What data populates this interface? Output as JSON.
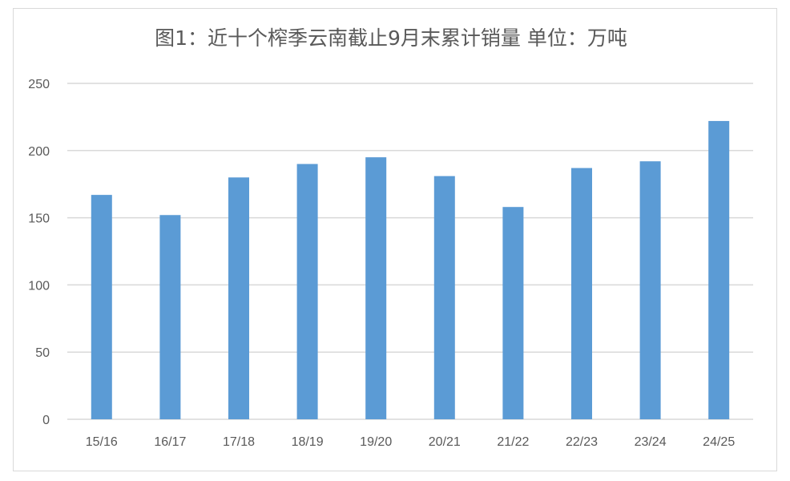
{
  "chart_data": {
    "type": "bar",
    "title": "图1：近十个榨季云南截止9月末累计销量  单位：万吨",
    "categories": [
      "15/16",
      "16/17",
      "17/18",
      "18/19",
      "19/20",
      "20/21",
      "21/22",
      "22/23",
      "23/24",
      "24/25"
    ],
    "values": [
      167,
      152,
      180,
      190,
      195,
      181,
      158,
      187,
      192,
      222
    ],
    "xlabel": "",
    "ylabel": "",
    "ylim": [
      0,
      250
    ],
    "yticks": [
      0,
      50,
      100,
      150,
      200,
      250
    ],
    "grid": true,
    "legend": "none",
    "bar_color": "#5b9bd5",
    "grid_color": "#d9d9d9"
  }
}
